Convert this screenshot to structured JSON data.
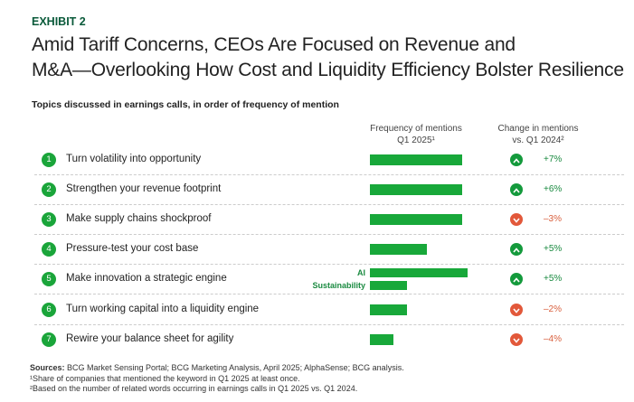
{
  "header": {
    "exhibit": "EXHIBIT 2",
    "title_line1": "Amid Tariff Concerns, CEOs Are Focused on Revenue and",
    "title_line2": "M&A—Overlooking How Cost and Liquidity Efficiency Bolster Resilience",
    "subtitle": "Topics discussed in earnings calls, in order of frequency of mention"
  },
  "colors": {
    "bar": "#18a83a",
    "up": "#149a3c",
    "down": "#e2583a",
    "up_text": "#1a8a40",
    "down_text": "#d9603e"
  },
  "chart_data": {
    "type": "bar",
    "columns": {
      "freq_line1": "Frequency of mentions",
      "freq_line2": "Q1 2025¹",
      "change_line1": "Change in mentions",
      "change_line2": "vs. Q1 2024²"
    },
    "rows": [
      {
        "num": "1",
        "label": "Turn volatility into opportunity",
        "bars": [
          {
            "label": "",
            "value": 0.94
          }
        ],
        "direction": "up",
        "change": "+7%"
      },
      {
        "num": "2",
        "label": "Strengthen your revenue footprint",
        "bars": [
          {
            "label": "",
            "value": 0.94
          }
        ],
        "direction": "up",
        "change": "+6%"
      },
      {
        "num": "3",
        "label": "Make supply chains shockproof",
        "bars": [
          {
            "label": "",
            "value": 0.94
          }
        ],
        "direction": "down",
        "change": "–3%"
      },
      {
        "num": "4",
        "label": "Pressure-test your cost base",
        "bars": [
          {
            "label": "",
            "value": 0.58
          }
        ],
        "direction": "up",
        "change": "+5%"
      },
      {
        "num": "5",
        "label": "Make innovation a strategic engine",
        "bars": [
          {
            "label": "AI",
            "value": 1.0
          },
          {
            "label": "Sustainability",
            "value": 0.38
          }
        ],
        "direction": "up",
        "change": "+5%"
      },
      {
        "num": "6",
        "label": "Turn working capital into a liquidity engine",
        "bars": [
          {
            "label": "",
            "value": 0.38
          }
        ],
        "direction": "down",
        "change": "–2%"
      },
      {
        "num": "7",
        "label": "Rewire your balance sheet for agility",
        "bars": [
          {
            "label": "",
            "value": 0.24
          }
        ],
        "direction": "down",
        "change": "–4%"
      }
    ]
  },
  "notes": {
    "sources_label": "Sources:",
    "sources": " BCG Market Sensing Portal; BCG Marketing Analysis, April 2025; AlphaSense; BCG analysis.",
    "note1": "¹Share of companies that mentioned the keyword in Q1 2025 at least once.",
    "note2": "²Based on the number of related words occurring in earnings calls in Q1 2025 vs. Q1 2024."
  }
}
